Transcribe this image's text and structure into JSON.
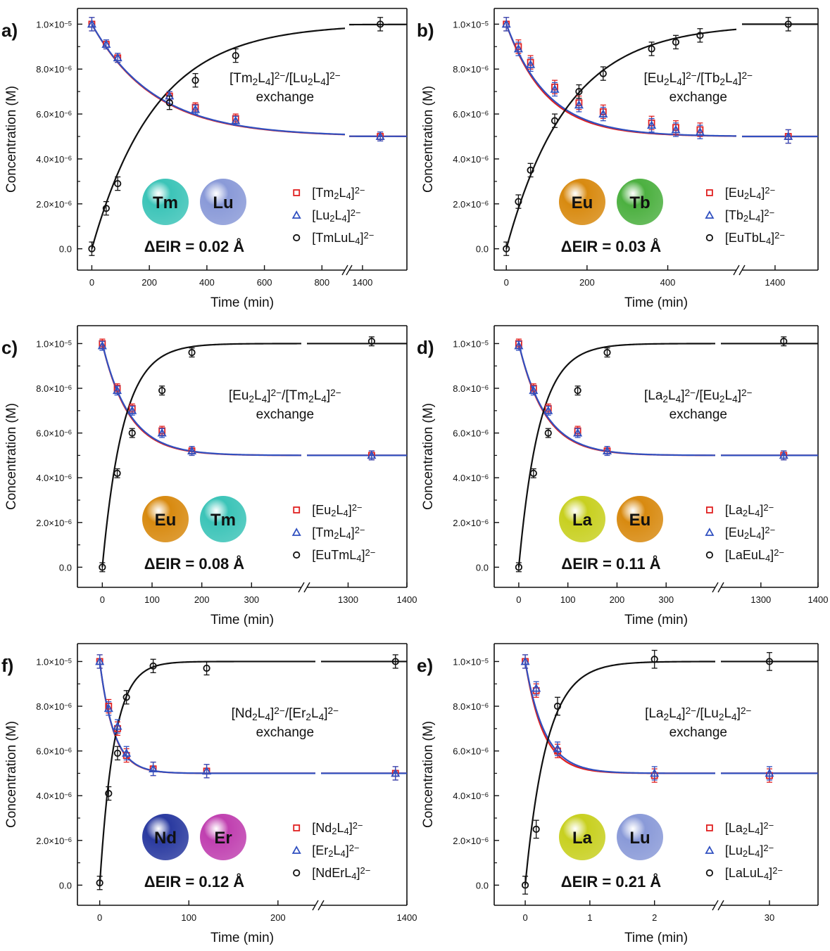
{
  "chart_data": [
    {
      "type": "scatter",
      "panel": "a)",
      "xlabel": "Time (min)",
      "ylabel": "Concentration (M)",
      "x_break": true,
      "x_segments": [
        {
          "range": [
            -50,
            880
          ],
          "ticks": [
            0,
            200,
            400,
            600,
            800
          ]
        },
        {
          "range": [
            1370,
            1500
          ],
          "ticks": [
            1400
          ]
        }
      ],
      "ylim": [
        -9.5e-07,
        1.07e-05
      ],
      "yticks": [
        "0.0",
        "2.0×10⁻⁶",
        "4.0×10⁻⁶",
        "6.0×10⁻⁶",
        "8.0×10⁻⁶",
        "1.0×10⁻⁵"
      ],
      "annotation": [
        "[Tm₂L₄]²⁻/[Lu₂L₄]²⁻",
        "exchange"
      ],
      "spheres": [
        {
          "label": "Tm",
          "color": "#3cc4b8"
        },
        {
          "label": "Lu",
          "color": "#8a9ad8"
        }
      ],
      "eir": "ΔEIR = 0.02 Å",
      "series": [
        {
          "name": "[Tm₂L₄]²⁻",
          "marker": "square",
          "color": "#e02020",
          "fit": "decay",
          "k": 0.00463,
          "x": [
            0,
            50,
            90,
            270,
            360,
            500,
            1440
          ],
          "y": [
            1e-05,
            9.1e-06,
            8.5e-06,
            6.8e-06,
            6.3e-06,
            5.8e-06,
            5e-06
          ],
          "err": [
            3e-07,
            2e-07,
            2e-07,
            2e-07,
            2e-07,
            2e-07,
            2e-07
          ]
        },
        {
          "name": "[Lu₂L₄]²⁻",
          "marker": "triangle",
          "color": "#3050c0",
          "fit": "decay",
          "k": 0.00455,
          "x": [
            0,
            50,
            90,
            270,
            360,
            500,
            1440
          ],
          "y": [
            1e-05,
            9.1e-06,
            8.5e-06,
            6.8e-06,
            6.2e-06,
            5.7e-06,
            5e-06
          ],
          "err": [
            3e-07,
            2e-07,
            2e-07,
            2e-07,
            2e-07,
            2e-07,
            2e-07
          ]
        },
        {
          "name": "[TmLuL₄]²⁻",
          "marker": "circle",
          "color": "#111111",
          "fit": "rise",
          "k": 0.00453,
          "x": [
            0,
            50,
            90,
            270,
            360,
            500,
            1440
          ],
          "y": [
            0,
            1.8e-06,
            2.9e-06,
            6.5e-06,
            7.5e-06,
            8.6e-06,
            1e-05
          ],
          "err": [
            3e-07,
            3e-07,
            3e-07,
            3e-07,
            3e-07,
            3e-07,
            3e-07
          ]
        }
      ]
    },
    {
      "type": "scatter",
      "panel": "b)",
      "xlabel": "Time (min)",
      "ylabel": "Concentration (M)",
      "x_break": true,
      "x_segments": [
        {
          "range": [
            -30,
            570
          ],
          "ticks": [
            0,
            200,
            400
          ]
        },
        {
          "range": [
            1300,
            1530
          ],
          "ticks": [
            1400
          ]
        }
      ],
      "ylim": [
        -9.5e-07,
        1.07e-05
      ],
      "yticks": [
        "0.0",
        "2.0×10⁻⁶",
        "4.0×10⁻⁶",
        "6.0×10⁻⁶",
        "8.0×10⁻⁶",
        "1.0×10⁻⁵"
      ],
      "annotation": [
        "[Eu₂L₄]²⁻/[Tb₂L₄]²⁻",
        "exchange"
      ],
      "spheres": [
        {
          "label": "Eu",
          "color": "#d88a10"
        },
        {
          "label": "Tb",
          "color": "#4cb040"
        }
      ],
      "eir": "ΔEIR = 0.03 Å",
      "series": [
        {
          "name": "[Eu₂L₄]²⁻",
          "marker": "square",
          "color": "#e02020",
          "fit": "decay",
          "k": 0.0101,
          "x": [
            0,
            30,
            60,
            120,
            180,
            240,
            360,
            420,
            480,
            1440
          ],
          "y": [
            1e-05,
            9e-06,
            8.3e-06,
            7.2e-06,
            6.5e-06,
            6.1e-06,
            5.6e-06,
            5.4e-06,
            5.3e-06,
            5e-06
          ],
          "err": [
            3e-07,
            3e-07,
            3e-07,
            3e-07,
            3e-07,
            3e-07,
            3e-07,
            3e-07,
            3e-07,
            3e-07
          ]
        },
        {
          "name": "[Tb₂L₄]²⁻",
          "marker": "triangle",
          "color": "#3050c0",
          "fit": "decay",
          "k": 0.0097,
          "x": [
            0,
            30,
            60,
            120,
            180,
            240,
            360,
            420,
            480,
            1440
          ],
          "y": [
            1e-05,
            8.9e-06,
            8.2e-06,
            7.1e-06,
            6.4e-06,
            6e-06,
            5.5e-06,
            5.3e-06,
            5.2e-06,
            5e-06
          ],
          "err": [
            3e-07,
            3e-07,
            3e-07,
            3e-07,
            3e-07,
            3e-07,
            3e-07,
            3e-07,
            3e-07,
            3e-07
          ]
        },
        {
          "name": "[EuTbL₄]²⁻",
          "marker": "circle",
          "color": "#111111",
          "fit": "rise",
          "k": 0.0066,
          "x": [
            0,
            30,
            60,
            120,
            180,
            240,
            360,
            420,
            480,
            1440
          ],
          "y": [
            0,
            2.1e-06,
            3.5e-06,
            5.7e-06,
            7e-06,
            7.8e-06,
            8.9e-06,
            9.2e-06,
            9.5e-06,
            1e-05
          ],
          "err": [
            3e-07,
            3e-07,
            3e-07,
            3e-07,
            3e-07,
            3e-07,
            3e-07,
            3e-07,
            3e-07,
            3e-07
          ]
        }
      ]
    },
    {
      "type": "scatter",
      "panel": "c)",
      "xlabel": "Time (min)",
      "ylabel": "Concentration (M)",
      "x_break": true,
      "x_segments": [
        {
          "range": [
            -50,
            400
          ],
          "ticks": [
            0,
            100,
            200,
            300
          ]
        },
        {
          "range": [
            1230,
            1400
          ],
          "ticks": [
            1300,
            1400
          ]
        }
      ],
      "ylim": [
        -9e-07,
        1.08e-05
      ],
      "yticks": [
        "0.0",
        "2.0×10⁻⁶",
        "4.0×10⁻⁶",
        "6.0×10⁻⁶",
        "8.0×10⁻⁶",
        "1.0×10⁻⁵"
      ],
      "annotation": [
        "[Eu₂L₄]²⁻/[Tm₂L₄]²⁻",
        "exchange"
      ],
      "spheres": [
        {
          "label": "Eu",
          "color": "#d88a10"
        },
        {
          "label": "Tm",
          "color": "#3cc4b8"
        }
      ],
      "eir": "ΔEIR = 0.08 Å",
      "series": [
        {
          "name": "[Eu₂L₄]²⁻",
          "marker": "square",
          "color": "#e02020",
          "fit": "decay",
          "k": 0.0187,
          "x": [
            0,
            30,
            60,
            120,
            180,
            1340
          ],
          "y": [
            1e-05,
            8e-06,
            7.1e-06,
            6.1e-06,
            5.2e-06,
            5e-06
          ],
          "err": [
            2e-07,
            2e-07,
            2e-07,
            2e-07,
            2e-07,
            2e-07
          ]
        },
        {
          "name": "[Tm₂L₄]²⁻",
          "marker": "triangle",
          "color": "#3050c0",
          "fit": "decay",
          "k": 0.0182,
          "x": [
            0,
            30,
            60,
            120,
            180,
            1340
          ],
          "y": [
            9.9e-06,
            7.9e-06,
            7e-06,
            6e-06,
            5.2e-06,
            5e-06
          ],
          "err": [
            2e-07,
            2e-07,
            2e-07,
            2e-07,
            2e-07,
            2e-07
          ]
        },
        {
          "name": "[EuTmL₄]²⁻",
          "marker": "circle",
          "color": "#111111",
          "fit": "rise",
          "k": 0.0237,
          "x": [
            0,
            30,
            60,
            120,
            180,
            1340
          ],
          "y": [
            0,
            4.2e-06,
            6e-06,
            7.9e-06,
            9.6e-06,
            1.01e-05
          ],
          "err": [
            2e-07,
            2e-07,
            2e-07,
            2e-07,
            2e-07,
            2e-07
          ]
        }
      ]
    },
    {
      "type": "scatter",
      "panel": "d)",
      "xlabel": "Time (min)",
      "ylabel": "Concentration (M)",
      "x_break": true,
      "x_segments": [
        {
          "range": [
            -50,
            400
          ],
          "ticks": [
            0,
            100,
            200,
            300
          ]
        },
        {
          "range": [
            1230,
            1400
          ],
          "ticks": [
            1300,
            1400
          ]
        }
      ],
      "ylim": [
        -9e-07,
        1.08e-05
      ],
      "yticks": [
        "0.0",
        "2.0×10⁻⁶",
        "4.0×10⁻⁶",
        "6.0×10⁻⁶",
        "8.0×10⁻⁶",
        "1.0×10⁻⁵"
      ],
      "annotation": [
        "[La₂L₄]²⁻/[Eu₂L₄]²⁻",
        "exchange"
      ],
      "spheres": [
        {
          "label": "La",
          "color": "#c8d020"
        },
        {
          "label": "Eu",
          "color": "#d88a10"
        }
      ],
      "eir": "ΔEIR = 0.11 Å",
      "series": [
        {
          "name": "[La₂L₄]²⁻",
          "marker": "square",
          "color": "#e02020",
          "fit": "decay",
          "k": 0.0187,
          "x": [
            0,
            30,
            60,
            120,
            180,
            1340
          ],
          "y": [
            1e-05,
            8e-06,
            7.1e-06,
            6.1e-06,
            5.2e-06,
            5e-06
          ],
          "err": [
            2e-07,
            2e-07,
            2e-07,
            2e-07,
            2e-07,
            2e-07
          ]
        },
        {
          "name": "[Eu₂L₄]²⁻",
          "marker": "triangle",
          "color": "#3050c0",
          "fit": "decay",
          "k": 0.0182,
          "x": [
            0,
            30,
            60,
            120,
            180,
            1340
          ],
          "y": [
            9.9e-06,
            7.9e-06,
            7e-06,
            6e-06,
            5.2e-06,
            5e-06
          ],
          "err": [
            2e-07,
            2e-07,
            2e-07,
            2e-07,
            2e-07,
            2e-07
          ]
        },
        {
          "name": "[LaEuL₄]²⁻",
          "marker": "circle",
          "color": "#111111",
          "fit": "rise",
          "k": 0.0237,
          "x": [
            0,
            30,
            60,
            120,
            180,
            1340
          ],
          "y": [
            0,
            4.2e-06,
            6e-06,
            7.9e-06,
            9.6e-06,
            1.01e-05
          ],
          "err": [
            2e-07,
            2e-07,
            2e-07,
            2e-07,
            2e-07,
            2e-07
          ]
        }
      ]
    },
    {
      "type": "scatter",
      "panel": "f)",
      "xlabel": "Time (min)",
      "ylabel": "Concentration (M)",
      "x_break": true,
      "x_segments": [
        {
          "range": [
            -25,
            242
          ],
          "ticks": [
            0,
            100,
            200
          ]
        },
        {
          "range": [
            1250,
            1400
          ],
          "ticks": [
            1400
          ]
        }
      ],
      "ylim": [
        -9e-07,
        1.08e-05
      ],
      "yticks": [
        "0.0",
        "2.0×10⁻⁶",
        "4.0×10⁻⁶",
        "6.0×10⁻⁶",
        "8.0×10⁻⁶",
        "1.0×10⁻⁵"
      ],
      "annotation": [
        "[Nd₂L₄]²⁻/[Er₂L₄]²⁻",
        "exchange"
      ],
      "spheres": [
        {
          "label": "Nd",
          "color": "#2a3aa0"
        },
        {
          "label": "Er",
          "color": "#c040b0"
        }
      ],
      "eir": "ΔEIR = 0.12 Å",
      "series": [
        {
          "name": "[Nd₂L₄]²⁻",
          "marker": "square",
          "color": "#e02020",
          "fit": "decay",
          "k": 0.063,
          "x": [
            0,
            10,
            20,
            30,
            60,
            120,
            1380
          ],
          "y": [
            1e-05,
            8e-06,
            7e-06,
            5.8e-06,
            5.2e-06,
            5.1e-06,
            5e-06
          ],
          "err": [
            3e-07,
            3e-07,
            3e-07,
            3e-07,
            3e-07,
            3e-07,
            3e-07
          ]
        },
        {
          "name": "[Er₂L₄]²⁻",
          "marker": "triangle",
          "color": "#3050c0",
          "fit": "decay",
          "k": 0.062,
          "x": [
            0,
            10,
            20,
            30,
            60,
            120,
            1380
          ],
          "y": [
            1e-05,
            7.9e-06,
            7.1e-06,
            5.9e-06,
            5.2e-06,
            5.1e-06,
            5e-06
          ],
          "err": [
            3e-07,
            3e-07,
            3e-07,
            3e-07,
            3e-07,
            3e-07,
            3e-07
          ]
        },
        {
          "name": "[NdErL₄]²⁻",
          "marker": "circle",
          "color": "#111111",
          "fit": "rise",
          "k": 0.062,
          "x": [
            0,
            10,
            20,
            30,
            60,
            120,
            1380
          ],
          "y": [
            1e-07,
            4.1e-06,
            5.9e-06,
            8.4e-06,
            9.8e-06,
            9.7e-06,
            1e-05
          ],
          "err": [
            3e-07,
            3e-07,
            3e-07,
            3e-07,
            3e-07,
            3e-07,
            3e-07
          ]
        }
      ]
    },
    {
      "type": "scatter",
      "panel": "e)",
      "xlabel": "Time (min)",
      "ylabel": "Concentration (M)",
      "x_break": true,
      "x_segments": [
        {
          "range": [
            -0.48,
            2.94
          ],
          "ticks": [
            0,
            1,
            2
          ]
        },
        {
          "range": [
            28.8,
            31.2
          ],
          "ticks": [
            30
          ]
        }
      ],
      "ylim": [
        -9e-07,
        1.08e-05
      ],
      "yticks": [
        "0.0",
        "2.0×10⁻⁶",
        "4.0×10⁻⁶",
        "6.0×10⁻⁶",
        "8.0×10⁻⁶",
        "1.0×10⁻⁵"
      ],
      "annotation": [
        "[La₂L₄]²⁻/[Lu₂L₄]²⁻",
        "exchange"
      ],
      "spheres": [
        {
          "label": "La",
          "color": "#c8d020"
        },
        {
          "label": "Lu",
          "color": "#8a9ad8"
        }
      ],
      "eir": "ΔEIR = 0.21 Å",
      "series": [
        {
          "name": "[La₂L₄]²⁻",
          "marker": "square",
          "color": "#e02020",
          "fit": "decay",
          "k": 3.57,
          "x": [
            0,
            0.17,
            0.5,
            2,
            30
          ],
          "y": [
            1e-05,
            8.7e-06,
            6e-06,
            4.9e-06,
            4.9e-06
          ],
          "err": [
            3e-07,
            3e-07,
            3e-07,
            3e-07,
            3e-07
          ]
        },
        {
          "name": "[Lu₂L₄]²⁻",
          "marker": "triangle",
          "color": "#3050c0",
          "fit": "decay",
          "k": 3.3,
          "x": [
            0,
            0.17,
            0.5,
            2,
            30
          ],
          "y": [
            1e-05,
            8.8e-06,
            6.1e-06,
            5e-06,
            5e-06
          ],
          "err": [
            3e-07,
            3e-07,
            3e-07,
            3e-07,
            3e-07
          ]
        },
        {
          "name": "[LaLuL₄]²⁻",
          "marker": "circle",
          "color": "#111111",
          "fit": "rise",
          "k": 3.0,
          "x": [
            0,
            0.17,
            0.5,
            2,
            30
          ],
          "y": [
            0,
            2.5e-06,
            8e-06,
            1.01e-05,
            1e-05
          ],
          "err": [
            4e-07,
            4e-07,
            4e-07,
            4e-07,
            4e-07
          ]
        }
      ]
    }
  ]
}
